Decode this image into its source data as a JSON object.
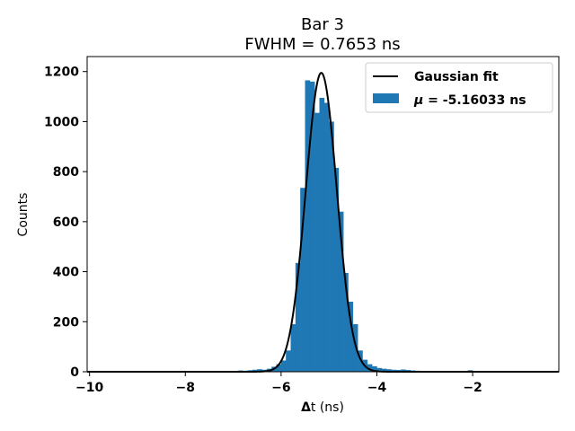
{
  "chart_data": {
    "type": "bar",
    "title": "Bar 3",
    "subtitle": "FWHM = 0.7653 ns",
    "xlabel_bold": "Δ",
    "xlabel_rest": "t (ns)",
    "ylabel": "Counts",
    "xlim": [
      -10.05,
      -0.2
    ],
    "ylim": [
      0,
      1260
    ],
    "xticks": [
      -10,
      -8,
      -6,
      -4,
      -2
    ],
    "xtick_labels": [
      "−10",
      "−8",
      "−6",
      "−4",
      "−2"
    ],
    "yticks": [
      0,
      200,
      400,
      600,
      800,
      1000,
      1200
    ],
    "ytick_labels": [
      "0",
      "200",
      "400",
      "600",
      "800",
      "1000",
      "1200"
    ],
    "grid": false,
    "legend_position": "top-right",
    "bar_color": "#1f77b4",
    "fit_color": "#000000",
    "histogram": {
      "bin_width": 0.1,
      "bin_starts": [
        -7.1,
        -7.0,
        -6.9,
        -6.8,
        -6.7,
        -6.6,
        -6.5,
        -6.4,
        -6.3,
        -6.2,
        -6.1,
        -6.0,
        -5.9,
        -5.8,
        -5.7,
        -5.6,
        -5.5,
        -5.4,
        -5.3,
        -5.2,
        -5.1,
        -5.0,
        -4.9,
        -4.8,
        -4.7,
        -4.6,
        -4.5,
        -4.4,
        -4.3,
        -4.2,
        -4.1,
        -4.0,
        -3.9,
        -3.8,
        -3.7,
        -3.6,
        -3.5,
        -3.4,
        -3.3,
        -3.2,
        -3.1,
        -3.0,
        -2.9,
        -2.1
      ],
      "counts": [
        2,
        3,
        5,
        4,
        6,
        8,
        10,
        8,
        12,
        20,
        30,
        45,
        85,
        190,
        435,
        735,
        1165,
        1160,
        1035,
        1095,
        1075,
        1000,
        815,
        640,
        395,
        280,
        190,
        85,
        48,
        30,
        22,
        15,
        12,
        10,
        8,
        7,
        9,
        7,
        5,
        4,
        3,
        2,
        3,
        6
      ]
    },
    "series": [
      {
        "name": "Gaussian fit",
        "kind": "line",
        "mu": -5.16033,
        "fwhm": 0.7653,
        "amplitude": 1195
      },
      {
        "name": "μ = -5.16033 ns",
        "kind": "bar"
      }
    ],
    "legend": {
      "fit_label": "Gaussian fit",
      "mu_symbol": "μ",
      "mu_rest": " = -5.16033 ns"
    }
  }
}
